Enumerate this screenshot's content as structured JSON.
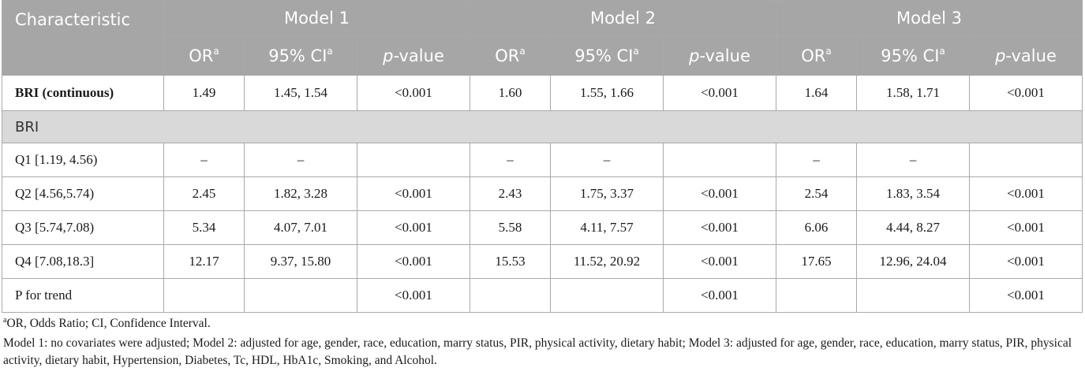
{
  "table": {
    "corner_label": "Characteristic",
    "models": [
      "Model 1",
      "Model 2",
      "Model 3"
    ],
    "sub_headers": {
      "or": "OR",
      "ci": "95% CI",
      "p_italic": "p",
      "p_rest": "-value",
      "sup": "a"
    },
    "continuous_row": {
      "label": "BRI (continuous)",
      "cells": [
        "1.49",
        "1.45, 1.54",
        "<0.001",
        "1.60",
        "1.55, 1.66",
        "<0.001",
        "1.64",
        "1.58, 1.71",
        "<0.001"
      ]
    },
    "section_label": "BRI",
    "rows": [
      {
        "label": "Q1 [1.19, 4.56)",
        "cells": [
          "–",
          "–",
          "",
          "–",
          "–",
          "",
          "–",
          "–",
          ""
        ]
      },
      {
        "label": "Q2 [4.56,5.74)",
        "cells": [
          "2.45",
          "1.82, 3.28",
          "<0.001",
          "2.43",
          "1.75, 3.37",
          "<0.001",
          "2.54",
          "1.83, 3.54",
          "<0.001"
        ]
      },
      {
        "label": "Q3 [5.74,7.08)",
        "cells": [
          "5.34",
          "4.07, 7.01",
          "<0.001",
          "5.58",
          "4.11, 7.57",
          "<0.001",
          "6.06",
          "4.44, 8.27",
          "<0.001"
        ]
      },
      {
        "label": "Q4 [7.08,18.3]",
        "cells": [
          "12.17",
          "9.37, 15.80",
          "<0.001",
          "15.53",
          "11.52, 20.92",
          "<0.001",
          "17.65",
          "12.96, 24.04",
          "<0.001"
        ]
      },
      {
        "label": "P for trend",
        "cells": [
          "",
          "",
          "<0.001",
          "",
          "",
          "<0.001",
          "",
          "",
          "<0.001"
        ]
      }
    ]
  },
  "footnotes": {
    "sup": "a",
    "abbrev": "OR, Odds Ratio; CI, Confidence Interval.",
    "models": "Model 1: no covariates were adjusted; Model 2: adjusted for age, gender, race, education, marry status, PIR, physical activity, dietary habit; Model 3: adjusted for age, gender, race, education, marry status, PIR, physical activity, dietary habit, Hypertension, Diabetes, Tc, HDL, HbA1c, Smoking, and Alcohol."
  }
}
